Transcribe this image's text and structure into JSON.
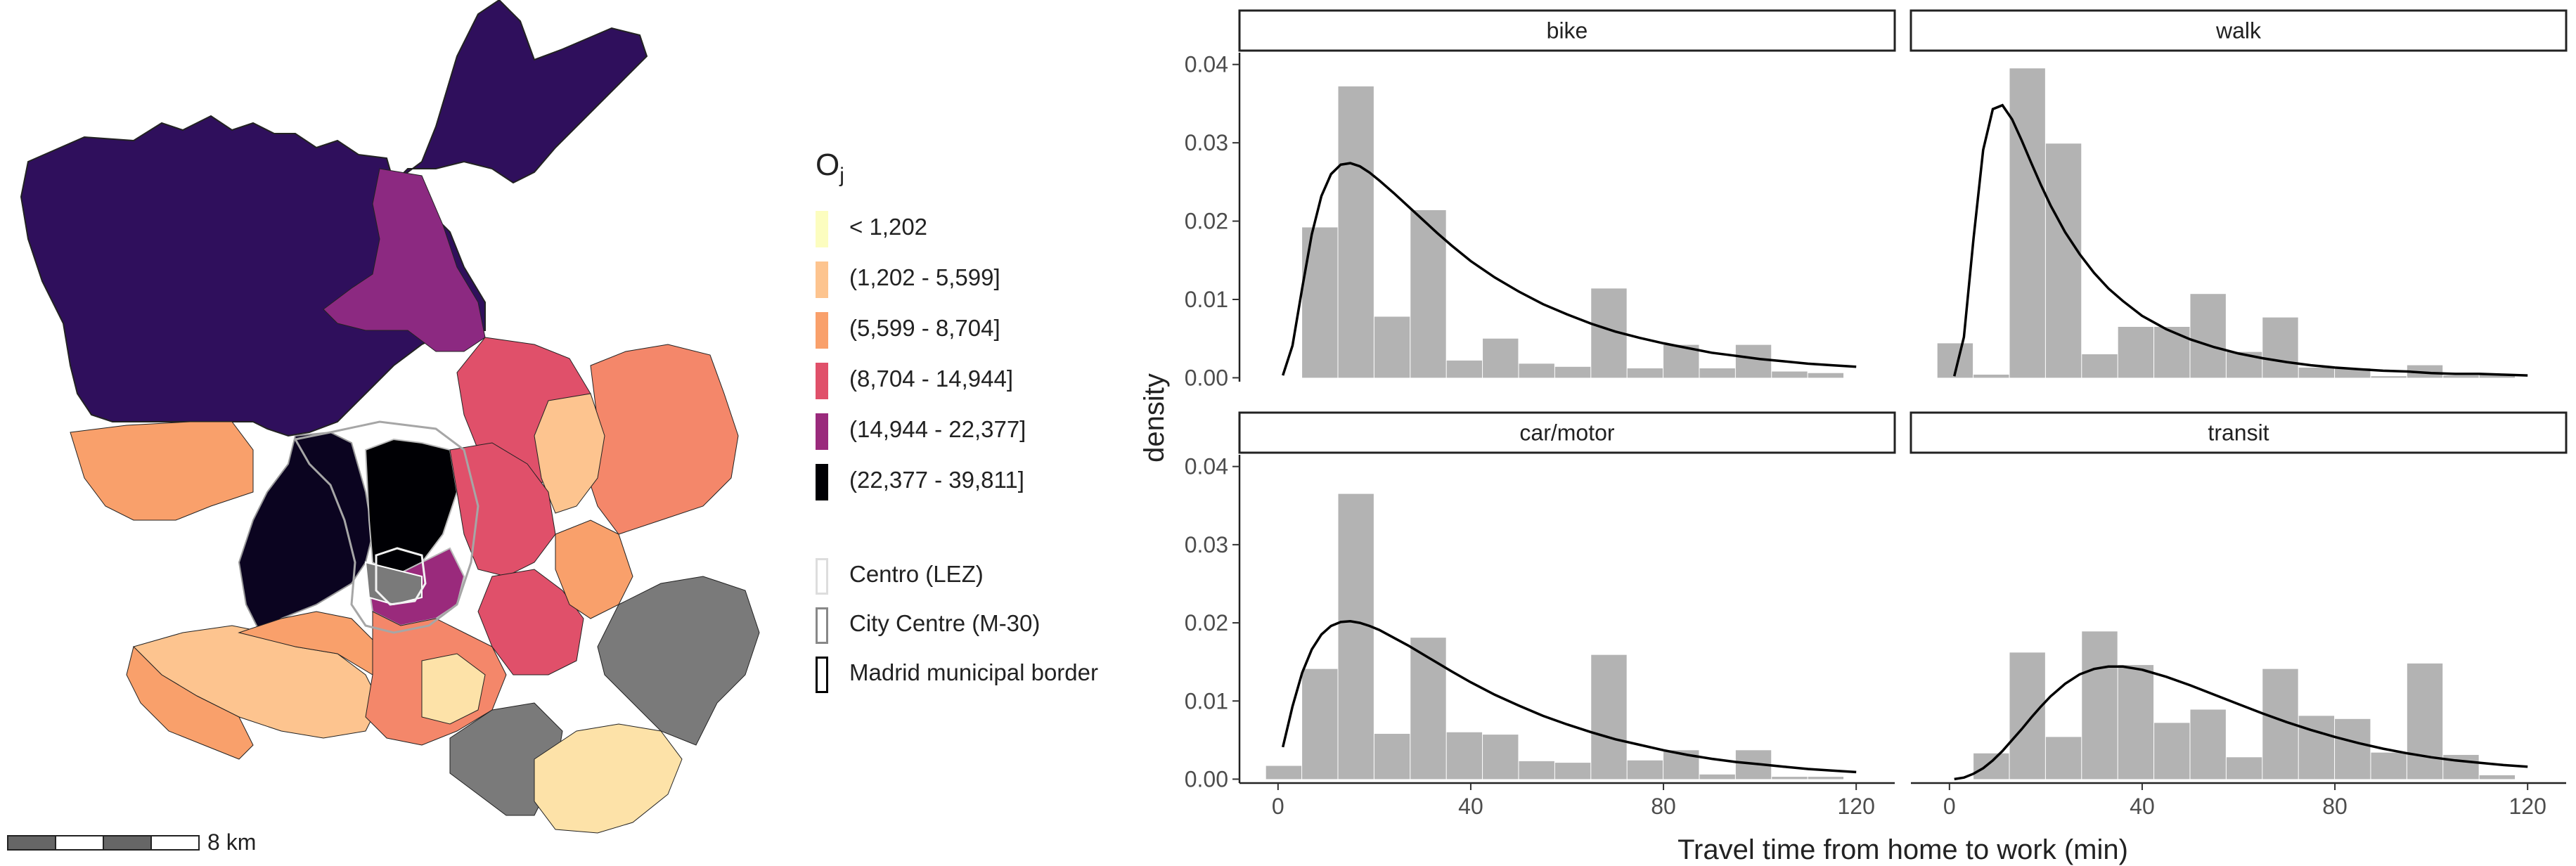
{
  "map": {
    "legend_title": "O",
    "legend_title_sub": "j",
    "classes": [
      {
        "label": "< 1,202",
        "color": "#fcfdbf"
      },
      {
        "label": "(1,202 - 5,599]",
        "color": "#fdc48f"
      },
      {
        "label": "(5,599 - 8,704]",
        "color": "#f9a06b"
      },
      {
        "label": "(8,704 - 14,944]",
        "color": "#e0506a"
      },
      {
        "label": "(14,944 - 22,377]",
        "color": "#9a2a7c"
      },
      {
        "label": "(22,377 - 39,811]",
        "color": "#000004"
      }
    ],
    "outlines": [
      {
        "label": "Centro (LEZ)",
        "color": "#dddddd"
      },
      {
        "label": "City Centre (M-30)",
        "color": "#888888"
      },
      {
        "label": "Madrid municipal border",
        "color": "#000000"
      }
    ],
    "scalebar_label": "8 km",
    "colors": {
      "northwest": "#2f0f5c",
      "north_band": "#8c2981",
      "grey": "#7a7a7a",
      "light": "#fde2a8"
    }
  },
  "chart_data": {
    "type": "bar",
    "subtype": "histogram_with_density_curve",
    "facets": [
      "bike",
      "walk",
      "car/motor",
      "transit"
    ],
    "xlabel": "Travel time from home to work (min)",
    "ylabel": "density",
    "x_ticks": [
      0,
      40,
      80,
      120
    ],
    "y_ticks": [
      0.0,
      0.01,
      0.02,
      0.03,
      0.04
    ],
    "y_tick_labels": [
      "0.00",
      "0.01",
      "0.02",
      "0.03",
      "0.04"
    ],
    "xlim": [
      -8,
      128
    ],
    "ylim": [
      -0.0005,
      0.0415
    ],
    "bin_width": 7.5,
    "bin_starts": [
      -2.5,
      5,
      12.5,
      20,
      27.5,
      35,
      42.5,
      50,
      57.5,
      65,
      72.5,
      80,
      87.5,
      95,
      102.5,
      110,
      117.5
    ],
    "series": [
      {
        "name": "bike",
        "hist": [
          0.0,
          0.0192,
          0.0372,
          0.0078,
          0.0214,
          0.0022,
          0.005,
          0.0018,
          0.0014,
          0.0114,
          0.0012,
          0.0042,
          0.0012,
          0.0042,
          0.0008,
          0.0006,
          0.0
        ],
        "curve": {
          "x": [
            1,
            3,
            5,
            7,
            9,
            11,
            13,
            15,
            17,
            19,
            21,
            24,
            27,
            30,
            33,
            36,
            40,
            45,
            50,
            55,
            60,
            65,
            70,
            75,
            80,
            85,
            90,
            95,
            100,
            105,
            110,
            115,
            120
          ],
          "y": [
            0.0003,
            0.0041,
            0.0114,
            0.0183,
            0.0232,
            0.026,
            0.0272,
            0.0274,
            0.027,
            0.0262,
            0.0252,
            0.0236,
            0.0219,
            0.0202,
            0.0185,
            0.0169,
            0.0149,
            0.0128,
            0.011,
            0.0094,
            0.0081,
            0.0069,
            0.0059,
            0.0051,
            0.0044,
            0.0038,
            0.0032,
            0.0028,
            0.0024,
            0.0021,
            0.0018,
            0.0016,
            0.0014
          ]
        }
      },
      {
        "name": "walk",
        "hist": [
          0.0044,
          0.0004,
          0.0395,
          0.0299,
          0.003,
          0.0065,
          0.0065,
          0.0107,
          0.0033,
          0.0077,
          0.0013,
          0.0012,
          0.0002,
          0.0016,
          0.0003,
          0.0004,
          0.0
        ],
        "curve": {
          "x": [
            1,
            3,
            5,
            7,
            9,
            11,
            13,
            15,
            17,
            19,
            21,
            24,
            27,
            30,
            33,
            36,
            40,
            45,
            50,
            55,
            60,
            65,
            70,
            75,
            80,
            85,
            90,
            95,
            100,
            105,
            110,
            115,
            120
          ],
          "y": [
            0.0002,
            0.0052,
            0.0178,
            0.0291,
            0.0343,
            0.0348,
            0.033,
            0.0303,
            0.0274,
            0.0246,
            0.022,
            0.0186,
            0.0158,
            0.0134,
            0.0114,
            0.0098,
            0.0079,
            0.0062,
            0.0049,
            0.0039,
            0.0031,
            0.0025,
            0.002,
            0.0016,
            0.0013,
            0.0011,
            0.0009,
            0.0008,
            0.0006,
            0.0005,
            0.0005,
            0.0004,
            0.0003
          ]
        }
      },
      {
        "name": "car/motor",
        "hist": [
          0.0017,
          0.0141,
          0.0365,
          0.0058,
          0.0181,
          0.006,
          0.0057,
          0.0023,
          0.0021,
          0.0159,
          0.0024,
          0.0037,
          0.0006,
          0.0037,
          0.0003,
          0.0003,
          0.0
        ],
        "curve": {
          "x": [
            1,
            3,
            5,
            7,
            9,
            11,
            13,
            15,
            17,
            19,
            21,
            24,
            27,
            30,
            33,
            36,
            40,
            45,
            50,
            55,
            60,
            65,
            70,
            75,
            80,
            85,
            90,
            95,
            100,
            105,
            110,
            115,
            120
          ],
          "y": [
            0.0041,
            0.0093,
            0.0136,
            0.0166,
            0.0185,
            0.0196,
            0.0201,
            0.0202,
            0.02,
            0.0196,
            0.0191,
            0.0181,
            0.0171,
            0.016,
            0.0149,
            0.0138,
            0.0124,
            0.0108,
            0.0094,
            0.0081,
            0.007,
            0.006,
            0.0051,
            0.0044,
            0.0037,
            0.0031,
            0.0026,
            0.0022,
            0.0019,
            0.0016,
            0.0013,
            0.0011,
            0.0009
          ]
        }
      },
      {
        "name": "transit",
        "hist": [
          0.0,
          0.0033,
          0.0162,
          0.0054,
          0.0189,
          0.0146,
          0.0072,
          0.0089,
          0.0028,
          0.0141,
          0.0081,
          0.0077,
          0.0034,
          0.0148,
          0.0031,
          0.0005,
          0.0
        ],
        "curve": {
          "x": [
            1,
            3,
            5,
            7,
            9,
            11,
            13,
            15,
            17,
            19,
            21,
            24,
            27,
            30,
            33,
            36,
            40,
            45,
            50,
            55,
            60,
            65,
            70,
            75,
            80,
            85,
            90,
            95,
            100,
            105,
            110,
            115,
            120
          ],
          "y": [
            0.0,
            0.0002,
            0.0007,
            0.0014,
            0.0024,
            0.0036,
            0.005,
            0.0064,
            0.0079,
            0.0093,
            0.0106,
            0.0122,
            0.0134,
            0.0141,
            0.0144,
            0.0144,
            0.014,
            0.0131,
            0.012,
            0.0108,
            0.0096,
            0.0084,
            0.0073,
            0.0063,
            0.0054,
            0.0046,
            0.0039,
            0.0033,
            0.0028,
            0.0024,
            0.0021,
            0.0018,
            0.0016
          ]
        }
      }
    ]
  }
}
